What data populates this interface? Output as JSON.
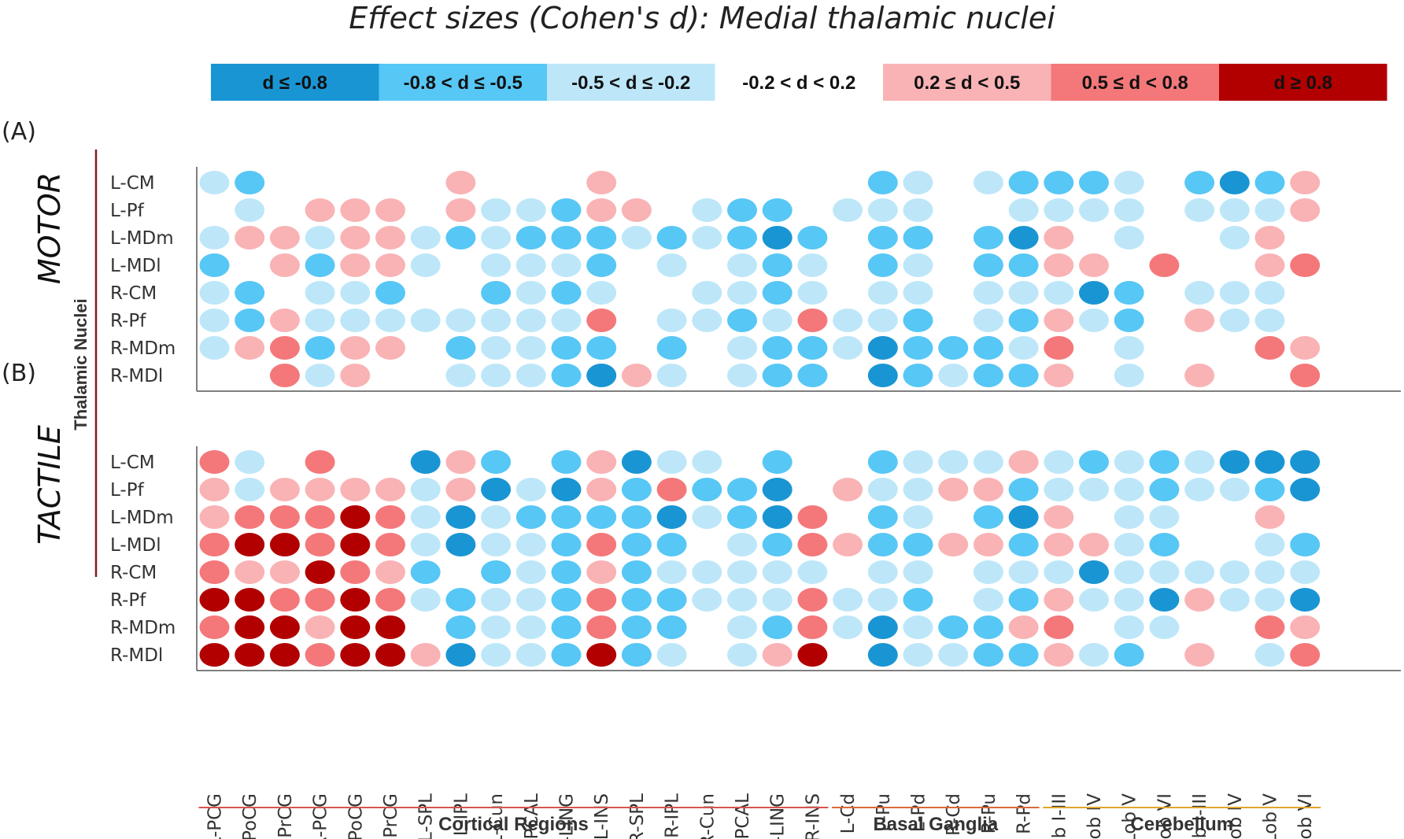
{
  "chart_data": {
    "type": "heatmap",
    "title": "Effect sizes (Cohen's d): Medial thalamic nuclei",
    "ylabel": "Thalamic Nuclei",
    "legend": {
      "position": "top",
      "entries": [
        {
          "label": "d ≤ -0.8",
          "color": "#1a95d3",
          "text_color": "#111111"
        },
        {
          "label": "-0.8 < d ≤ -0.5",
          "color": "#57c7f5",
          "text_color": "#111111"
        },
        {
          "label": "-0.5 < d ≤ -0.2",
          "color": "#bde7f9",
          "text_color": "#111111"
        },
        {
          "label": "-0.2 < d < 0.2",
          "color": "#ffffff",
          "text_color": "#111111"
        },
        {
          "label": "0.2 ≤ d < 0.5",
          "color": "#f9b3b5",
          "text_color": "#111111"
        },
        {
          "label": "0.5 ≤ d < 0.8",
          "color": "#f4787a",
          "text_color": "#111111"
        },
        {
          "label": "d ≥ 0.8",
          "color": "#b20000",
          "text_color": "#111111"
        }
      ]
    },
    "rows": [
      "L-CM",
      "L-Pf",
      "L-MDm",
      "L-MDl",
      "R-CM",
      "R-Pf",
      "R-MDm",
      "R-MDl"
    ],
    "columns": [
      "L-PCG",
      "L-PoCG",
      "L-PrCG",
      "R-PCG",
      "R-PoCG",
      "R-PrCG",
      "L-SPL",
      "L-IPL",
      "L-Cun",
      "L-PCAL",
      "L-LING",
      "L-INS",
      "R-SPL",
      "R-IPL",
      "R-Cun",
      "R-PCAL",
      "R-LING",
      "R-INS",
      "L-Cd",
      "L-Pu",
      "L-Pd",
      "R-Cd",
      "R-Pu",
      "R-Pd",
      "L-Lob I-III",
      "L-Lob IV",
      "L-Lob V",
      "L-Lob VI",
      "R-Lob I-III",
      "R-Lob IV",
      "R-Lob V",
      "R-Lob VI"
    ],
    "column_groups": [
      {
        "label": "Cortical Regions",
        "start": 0,
        "end": 17,
        "color": "#d9534f"
      },
      {
        "label": "Basal Ganglia",
        "start": 18,
        "end": 23,
        "color": "#d96a3a"
      },
      {
        "label": "Cerebellum",
        "start": 24,
        "end": 31,
        "color": "#e3a52a"
      }
    ],
    "value_encoding": "category index: -3 d≤-0.8, -2 -0.8<d≤-0.5, -1 -0.5<d≤-0.2, 0 -0.2<d<0.2 (no marker), 1 0.2≤d<0.5, 2 0.5≤d<0.8, 3 d≥0.8",
    "panels": [
      {
        "label": "(A)",
        "condition": "MOTOR",
        "values": [
          [
            -1,
            -2,
            0,
            0,
            0,
            0,
            0,
            1,
            0,
            0,
            0,
            1,
            0,
            0,
            0,
            0,
            0,
            0,
            0,
            -2,
            -1,
            0,
            -1,
            -2,
            -2,
            -2,
            -1,
            0,
            -2,
            -3,
            -2,
            1
          ],
          [
            0,
            -1,
            0,
            1,
            1,
            1,
            0,
            1,
            -1,
            -1,
            -2,
            1,
            1,
            0,
            -1,
            -2,
            -2,
            0,
            -1,
            -1,
            -1,
            0,
            0,
            -1,
            -1,
            -1,
            -1,
            0,
            -1,
            -1,
            -1,
            1
          ],
          [
            -1,
            1,
            1,
            -1,
            1,
            1,
            -1,
            -2,
            -1,
            -2,
            -2,
            -2,
            -1,
            -2,
            -1,
            -2,
            -3,
            -2,
            0,
            -2,
            -2,
            0,
            -2,
            -3,
            1,
            0,
            -1,
            0,
            0,
            -1,
            1,
            0
          ],
          [
            -2,
            0,
            1,
            -2,
            1,
            1,
            -1,
            0,
            -1,
            -1,
            -1,
            -2,
            0,
            -1,
            0,
            -1,
            -2,
            -1,
            0,
            -2,
            -1,
            0,
            -2,
            -2,
            1,
            1,
            0,
            2,
            0,
            0,
            1,
            2
          ],
          [
            -1,
            -2,
            0,
            -1,
            -1,
            -2,
            0,
            0,
            -2,
            -1,
            -2,
            -1,
            0,
            0,
            -1,
            -1,
            -2,
            -1,
            0,
            -1,
            -1,
            0,
            -1,
            -1,
            -1,
            -3,
            -2,
            0,
            -1,
            -1,
            -1,
            0
          ],
          [
            -1,
            -2,
            1,
            -1,
            -1,
            -1,
            -1,
            -1,
            -1,
            -1,
            -1,
            2,
            0,
            -1,
            -1,
            -2,
            -1,
            2,
            -1,
            -1,
            -2,
            0,
            -1,
            -2,
            1,
            -1,
            -2,
            0,
            1,
            -1,
            -1,
            0
          ],
          [
            -1,
            1,
            2,
            -2,
            1,
            1,
            0,
            -2,
            -1,
            -1,
            -2,
            -2,
            0,
            -2,
            0,
            -1,
            -2,
            -2,
            -1,
            -3,
            -2,
            -2,
            -2,
            -1,
            2,
            0,
            -1,
            0,
            0,
            0,
            2,
            1
          ],
          [
            0,
            0,
            2,
            -1,
            1,
            0,
            0,
            -1,
            -1,
            -1,
            -2,
            -3,
            1,
            -1,
            0,
            -1,
            -2,
            -2,
            0,
            -3,
            -2,
            -1,
            -2,
            -2,
            1,
            0,
            -1,
            0,
            1,
            0,
            0,
            2
          ]
        ]
      },
      {
        "label": "(B)",
        "condition": "TACTILE",
        "values": [
          [
            2,
            -1,
            0,
            2,
            0,
            0,
            -3,
            1,
            -2,
            0,
            -2,
            1,
            -3,
            -1,
            -1,
            0,
            -2,
            0,
            0,
            -2,
            -1,
            -1,
            -1,
            1,
            -1,
            -2,
            -1,
            -2,
            -1,
            -3,
            -3,
            -3
          ],
          [
            1,
            -1,
            1,
            1,
            1,
            1,
            -1,
            1,
            -3,
            -1,
            -3,
            1,
            -2,
            2,
            -2,
            -2,
            -3,
            0,
            1,
            -1,
            -1,
            1,
            1,
            -2,
            -1,
            -1,
            -1,
            -2,
            -1,
            -1,
            -2,
            -3
          ],
          [
            1,
            2,
            2,
            2,
            3,
            2,
            -1,
            -3,
            -1,
            -2,
            -2,
            -2,
            -2,
            -3,
            -1,
            -2,
            -3,
            2,
            0,
            -2,
            -1,
            0,
            -2,
            -3,
            1,
            0,
            -1,
            -1,
            0,
            0,
            1,
            0
          ],
          [
            2,
            3,
            3,
            2,
            3,
            2,
            -1,
            -3,
            -1,
            -1,
            -2,
            2,
            -2,
            -2,
            0,
            -1,
            -2,
            2,
            1,
            -2,
            -2,
            1,
            1,
            -2,
            1,
            1,
            -1,
            -2,
            0,
            0,
            -1,
            -2
          ],
          [
            2,
            1,
            1,
            3,
            2,
            1,
            -2,
            0,
            -2,
            -1,
            -2,
            1,
            -2,
            -1,
            -1,
            -1,
            -1,
            -1,
            0,
            -1,
            -1,
            0,
            -1,
            -1,
            -1,
            -3,
            -1,
            -1,
            -1,
            -1,
            -1,
            -1
          ],
          [
            3,
            3,
            2,
            2,
            3,
            2,
            -1,
            -2,
            -1,
            -1,
            -2,
            2,
            -2,
            -2,
            -1,
            -1,
            -1,
            2,
            -1,
            -1,
            -2,
            0,
            -1,
            -2,
            1,
            -1,
            -1,
            -3,
            1,
            -1,
            -1,
            -3
          ],
          [
            2,
            3,
            3,
            1,
            3,
            3,
            0,
            -2,
            -1,
            -1,
            -2,
            2,
            -2,
            -2,
            0,
            -1,
            -2,
            2,
            -1,
            -3,
            -1,
            -2,
            -2,
            1,
            2,
            0,
            -1,
            -1,
            0,
            0,
            2,
            1
          ],
          [
            3,
            3,
            3,
            2,
            3,
            3,
            1,
            -3,
            -1,
            -1,
            -2,
            3,
            -2,
            -1,
            0,
            -1,
            1,
            3,
            0,
            -3,
            -1,
            -1,
            -2,
            -2,
            1,
            -1,
            -2,
            0,
            1,
            0,
            -1,
            2
          ]
        ]
      }
    ]
  }
}
